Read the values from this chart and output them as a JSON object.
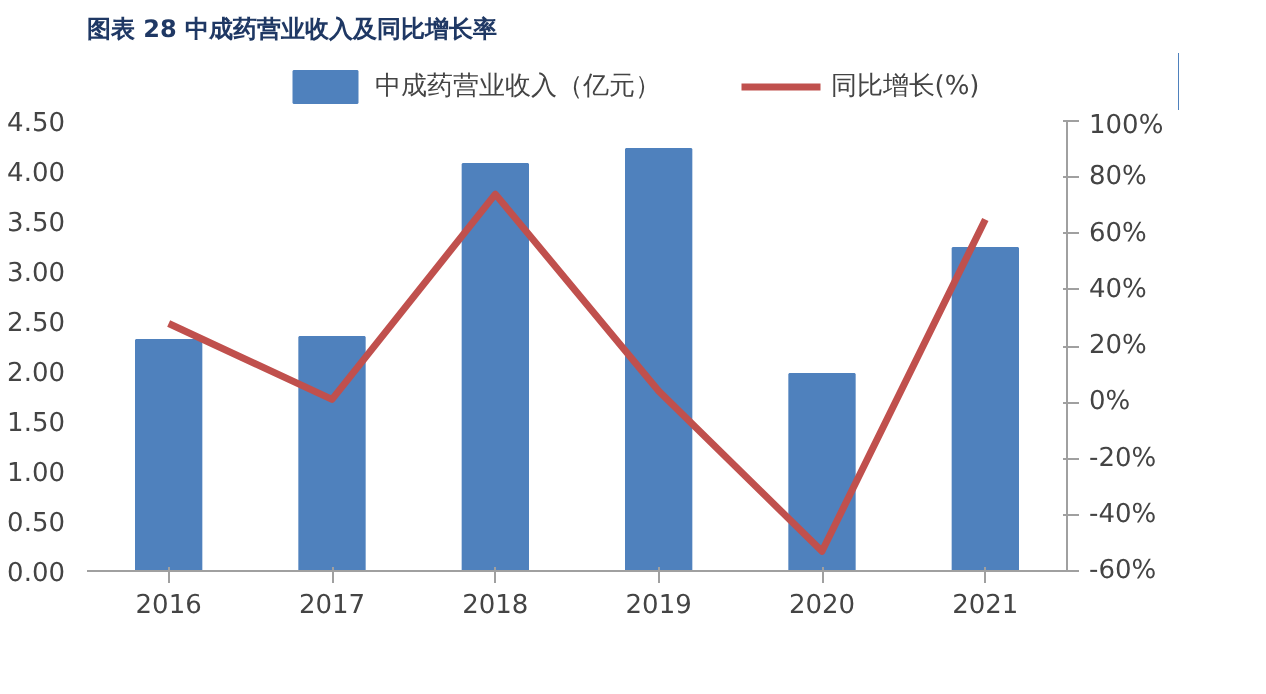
{
  "chart_data": {
    "type": "bar",
    "title": "图表 28  中成药营业收入及同比增长率",
    "categories": [
      "2016",
      "2017",
      "2018",
      "2019",
      "2020",
      "2021"
    ],
    "series": [
      {
        "name": "中成药营业收入（亿元）",
        "type": "bar",
        "color": "#4f81bd",
        "values": [
          2.31,
          2.34,
          4.07,
          4.22,
          1.97,
          3.23
        ]
      },
      {
        "name": "同比增长(%)",
        "type": "line",
        "axis": "y2",
        "color": "#c0504d",
        "values": [
          28,
          1,
          74,
          4,
          -53,
          65
        ]
      }
    ],
    "ylim": [
      0,
      4.5
    ],
    "yticks": [
      {
        "value": 0,
        "label": "0.00"
      },
      {
        "value": 0.5,
        "label": "0.50"
      },
      {
        "value": 1,
        "label": "1.00"
      },
      {
        "value": 1.5,
        "label": "1.50"
      },
      {
        "value": 2,
        "label": "2.00"
      },
      {
        "value": 2.5,
        "label": "2.50"
      },
      {
        "value": 3,
        "label": "3.00"
      },
      {
        "value": 3.5,
        "label": "3.50"
      },
      {
        "value": 4,
        "label": "4.00"
      },
      {
        "value": 4.5,
        "label": "4.50"
      }
    ],
    "y2lim": [
      -60,
      100
    ],
    "y2ticks": [
      {
        "value": -60,
        "label": "-60%"
      },
      {
        "value": -40,
        "label": "-40%"
      },
      {
        "value": -20,
        "label": "-20%"
      },
      {
        "value": 0,
        "label": "0%"
      },
      {
        "value": 20,
        "label": "20%"
      },
      {
        "value": 40,
        "label": "40%"
      },
      {
        "value": 60,
        "label": "60%"
      },
      {
        "value": 80,
        "label": "80%"
      },
      {
        "value": 100,
        "label": "100%"
      }
    ],
    "legend": "top",
    "grid": false
  }
}
